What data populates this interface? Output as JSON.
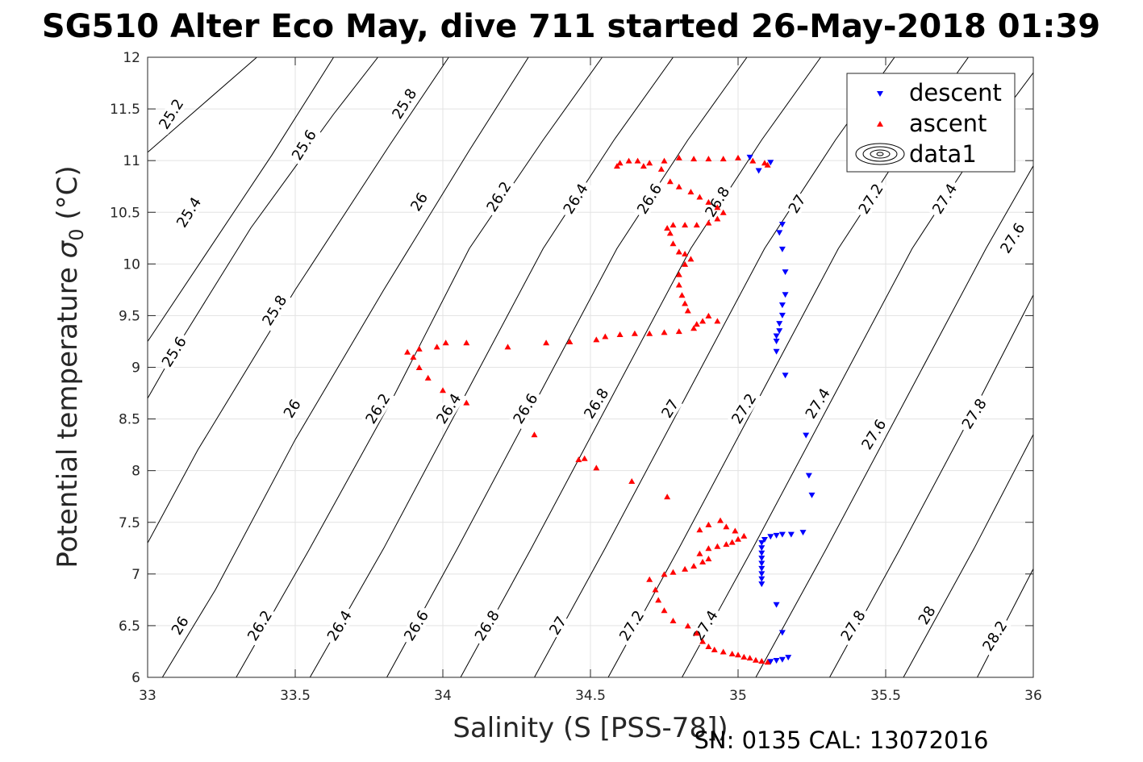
{
  "chart_data": {
    "type": "scatter",
    "title": "SG510 Alter Eco May, dive 711 started 26-May-2018 01:39",
    "xlabel": "Salinity (S [PSS-78])",
    "ylabel_main": "Potential temperature ",
    "ylabel_sigma": "σ",
    "ylabel_sub": "0",
    "ylabel_unit": " (°C)",
    "footer": "SN: 0135  CAL: 13072016",
    "xlim": [
      33,
      36
    ],
    "ylim": [
      6,
      12
    ],
    "xticks": [
      "33",
      "33.5",
      "34",
      "34.5",
      "35",
      "35.5",
      "36"
    ],
    "yticks": [
      "6",
      "6.5",
      "7",
      "7.5",
      "8",
      "8.5",
      "9",
      "9.5",
      "10",
      "10.5",
      "11",
      "11.5",
      "12"
    ],
    "grid": true,
    "legend": {
      "position": "top-right",
      "entries": [
        {
          "label": "descent",
          "color": "#0000ff",
          "marker": "triangle-down"
        },
        {
          "label": "ascent",
          "color": "#ff0000",
          "marker": "triangle-up"
        },
        {
          "label": "data1",
          "color": "#000000",
          "marker": "contour"
        }
      ]
    },
    "contour_labels": [
      {
        "text": "25.2",
        "s": 33.08,
        "t": 11.45
      },
      {
        "text": "25.8",
        "s": 33.87,
        "t": 11.55
      },
      {
        "text": "25.6",
        "s": 33.53,
        "t": 11.15
      },
      {
        "text": "25.4",
        "s": 33.14,
        "t": 10.5
      },
      {
        "text": "26",
        "s": 33.92,
        "t": 10.6
      },
      {
        "text": "26.2",
        "s": 34.19,
        "t": 10.65
      },
      {
        "text": "26.4",
        "s": 34.45,
        "t": 10.63
      },
      {
        "text": "26.6",
        "s": 34.7,
        "t": 10.63
      },
      {
        "text": "26.8",
        "s": 34.93,
        "t": 10.6
      },
      {
        "text": "27",
        "s": 35.2,
        "t": 10.58
      },
      {
        "text": "27.2",
        "s": 35.45,
        "t": 10.63
      },
      {
        "text": "27.4",
        "s": 35.7,
        "t": 10.63
      },
      {
        "text": "27.6",
        "s": 35.93,
        "t": 10.25
      },
      {
        "text": "25.8",
        "s": 33.43,
        "t": 9.55
      },
      {
        "text": "25.6",
        "s": 33.09,
        "t": 9.15
      },
      {
        "text": "26",
        "s": 33.49,
        "t": 8.6
      },
      {
        "text": "26.2",
        "s": 33.78,
        "t": 8.6
      },
      {
        "text": "26.4",
        "s": 34.02,
        "t": 8.6
      },
      {
        "text": "26.6",
        "s": 34.28,
        "t": 8.6
      },
      {
        "text": "26.8",
        "s": 34.52,
        "t": 8.65
      },
      {
        "text": "27",
        "s": 34.77,
        "t": 8.6
      },
      {
        "text": "27.2",
        "s": 35.02,
        "t": 8.6
      },
      {
        "text": "27.4",
        "s": 35.27,
        "t": 8.65
      },
      {
        "text": "27.6",
        "s": 35.46,
        "t": 8.35
      },
      {
        "text": "27.8",
        "s": 35.8,
        "t": 8.55
      },
      {
        "text": "26",
        "s": 33.11,
        "t": 6.5
      },
      {
        "text": "26.2",
        "s": 33.38,
        "t": 6.5
      },
      {
        "text": "26.4",
        "s": 33.65,
        "t": 6.5
      },
      {
        "text": "26.6",
        "s": 33.91,
        "t": 6.5
      },
      {
        "text": "26.8",
        "s": 34.15,
        "t": 6.5
      },
      {
        "text": "27",
        "s": 34.39,
        "t": 6.5
      },
      {
        "text": "27.2",
        "s": 34.64,
        "t": 6.5
      },
      {
        "text": "27.4",
        "s": 34.89,
        "t": 6.5
      },
      {
        "text": "27.8",
        "s": 35.39,
        "t": 6.5
      },
      {
        "text": "28",
        "s": 35.64,
        "t": 6.6
      },
      {
        "text": "28.2",
        "s": 35.87,
        "t": 6.4
      }
    ],
    "contour_lines": [
      {
        "p": [
          [
            33.0,
            11.08
          ],
          [
            33.37,
            12.0
          ]
        ]
      },
      {
        "p": [
          [
            33.0,
            9.25
          ],
          [
            33.42,
            11.05
          ],
          [
            33.63,
            12.0
          ]
        ]
      },
      {
        "p": [
          [
            33.0,
            8.7
          ],
          [
            33.1,
            9.2
          ],
          [
            33.35,
            10.35
          ],
          [
            33.63,
            11.45
          ],
          [
            33.78,
            12.0
          ]
        ]
      },
      {
        "p": [
          [
            33.0,
            7.3
          ],
          [
            33.17,
            8.2
          ],
          [
            33.5,
            9.75
          ],
          [
            33.82,
            11.15
          ],
          [
            34.02,
            12.0
          ]
        ]
      },
      {
        "p": [
          [
            33.05,
            6.0
          ],
          [
            33.23,
            6.85
          ],
          [
            33.5,
            8.3
          ],
          [
            33.8,
            9.75
          ],
          [
            34.09,
            11.1
          ],
          [
            34.29,
            12.0
          ]
        ]
      },
      {
        "p": [
          [
            33.3,
            6.0
          ],
          [
            33.55,
            7.25
          ],
          [
            33.83,
            8.7
          ],
          [
            34.09,
            10.15
          ],
          [
            34.34,
            11.2
          ],
          [
            34.54,
            12.0
          ]
        ]
      },
      {
        "p": [
          [
            33.55,
            6.0
          ],
          [
            33.8,
            7.25
          ],
          [
            34.07,
            8.7
          ],
          [
            34.34,
            10.15
          ],
          [
            34.58,
            11.2
          ],
          [
            34.78,
            12.0
          ]
        ]
      },
      {
        "p": [
          [
            33.81,
            6.0
          ],
          [
            34.05,
            7.25
          ],
          [
            34.32,
            8.7
          ],
          [
            34.59,
            10.15
          ],
          [
            34.83,
            11.2
          ],
          [
            35.03,
            12.0
          ]
        ]
      },
      {
        "p": [
          [
            34.06,
            6.0
          ],
          [
            34.3,
            7.25
          ],
          [
            34.57,
            8.7
          ],
          [
            34.84,
            10.15
          ],
          [
            35.08,
            11.2
          ],
          [
            35.28,
            12.0
          ]
        ]
      },
      {
        "p": [
          [
            34.31,
            6.0
          ],
          [
            34.55,
            7.25
          ],
          [
            34.82,
            8.7
          ],
          [
            35.09,
            10.15
          ],
          [
            35.33,
            11.2
          ],
          [
            35.53,
            12.0
          ]
        ]
      },
      {
        "p": [
          [
            34.56,
            6.0
          ],
          [
            34.8,
            7.25
          ],
          [
            35.07,
            8.7
          ],
          [
            35.34,
            10.15
          ],
          [
            35.58,
            11.2
          ],
          [
            35.78,
            12.0
          ]
        ]
      },
      {
        "p": [
          [
            34.81,
            6.0
          ],
          [
            35.05,
            7.25
          ],
          [
            35.32,
            8.7
          ],
          [
            35.59,
            10.15
          ],
          [
            35.83,
            11.2
          ],
          [
            36.0,
            11.85
          ]
        ]
      },
      {
        "p": [
          [
            35.06,
            6.0
          ],
          [
            35.3,
            7.25
          ],
          [
            35.57,
            8.7
          ],
          [
            35.84,
            10.15
          ],
          [
            36.0,
            10.95
          ]
        ]
      },
      {
        "p": [
          [
            35.31,
            6.0
          ],
          [
            35.55,
            7.25
          ],
          [
            35.82,
            8.7
          ],
          [
            36.0,
            9.7
          ]
        ]
      },
      {
        "p": [
          [
            35.56,
            6.0
          ],
          [
            35.8,
            7.25
          ],
          [
            36.0,
            8.35
          ]
        ]
      },
      {
        "p": [
          [
            35.81,
            6.0
          ],
          [
            36.0,
            7.05
          ]
        ]
      }
    ],
    "descent": [
      [
        35.04,
        11.03
      ],
      [
        35.07,
        10.9
      ],
      [
        35.11,
        10.98
      ],
      [
        35.15,
        10.38
      ],
      [
        35.14,
        10.3
      ],
      [
        35.15,
        10.14
      ],
      [
        35.16,
        9.92
      ],
      [
        35.16,
        9.7
      ],
      [
        35.15,
        9.6
      ],
      [
        35.15,
        9.5
      ],
      [
        35.14,
        9.42
      ],
      [
        35.14,
        9.35
      ],
      [
        35.13,
        9.3
      ],
      [
        35.13,
        9.25
      ],
      [
        35.13,
        9.15
      ],
      [
        35.16,
        8.92
      ],
      [
        35.23,
        8.34
      ],
      [
        35.24,
        7.95
      ],
      [
        35.25,
        7.76
      ],
      [
        35.22,
        7.4
      ],
      [
        35.18,
        7.38
      ],
      [
        35.15,
        7.38
      ],
      [
        35.13,
        7.37
      ],
      [
        35.11,
        7.36
      ],
      [
        35.09,
        7.33
      ],
      [
        35.08,
        7.3
      ],
      [
        35.08,
        7.25
      ],
      [
        35.08,
        7.2
      ],
      [
        35.08,
        7.15
      ],
      [
        35.08,
        7.1
      ],
      [
        35.08,
        7.05
      ],
      [
        35.08,
        7.0
      ],
      [
        35.08,
        6.95
      ],
      [
        35.08,
        6.9
      ],
      [
        35.13,
        6.7
      ],
      [
        35.15,
        6.43
      ],
      [
        35.17,
        6.19
      ],
      [
        35.15,
        6.17
      ],
      [
        35.13,
        6.16
      ],
      [
        35.11,
        6.15
      ]
    ],
    "ascent": [
      [
        35.1,
        6.15
      ],
      [
        35.08,
        6.16
      ],
      [
        35.06,
        6.17
      ],
      [
        35.04,
        6.19
      ],
      [
        35.02,
        6.2
      ],
      [
        35.0,
        6.22
      ],
      [
        34.98,
        6.23
      ],
      [
        34.95,
        6.25
      ],
      [
        34.92,
        6.27
      ],
      [
        34.9,
        6.3
      ],
      [
        34.88,
        6.35
      ],
      [
        34.86,
        6.43
      ],
      [
        34.83,
        6.5
      ],
      [
        34.78,
        6.55
      ],
      [
        34.75,
        6.65
      ],
      [
        34.73,
        6.75
      ],
      [
        34.72,
        6.85
      ],
      [
        34.7,
        6.95
      ],
      [
        34.75,
        7.0
      ],
      [
        34.78,
        7.02
      ],
      [
        34.82,
        7.05
      ],
      [
        34.85,
        7.08
      ],
      [
        34.88,
        7.12
      ],
      [
        34.9,
        7.15
      ],
      [
        34.87,
        7.2
      ],
      [
        34.9,
        7.25
      ],
      [
        34.93,
        7.27
      ],
      [
        34.96,
        7.29
      ],
      [
        34.98,
        7.31
      ],
      [
        35.0,
        7.34
      ],
      [
        35.02,
        7.37
      ],
      [
        34.99,
        7.42
      ],
      [
        34.96,
        7.46
      ],
      [
        34.94,
        7.52
      ],
      [
        34.9,
        7.48
      ],
      [
        34.87,
        7.43
      ],
      [
        34.76,
        7.75
      ],
      [
        34.64,
        7.9
      ],
      [
        34.52,
        8.03
      ],
      [
        34.48,
        8.12
      ],
      [
        34.46,
        8.11
      ],
      [
        34.31,
        8.35
      ],
      [
        34.08,
        8.66
      ],
      [
        34.0,
        8.78
      ],
      [
        33.95,
        8.9
      ],
      [
        33.92,
        9.0
      ],
      [
        33.9,
        9.1
      ],
      [
        33.88,
        9.15
      ],
      [
        33.92,
        9.18
      ],
      [
        33.98,
        9.2
      ],
      [
        34.01,
        9.24
      ],
      [
        34.08,
        9.24
      ],
      [
        34.22,
        9.2
      ],
      [
        34.35,
        9.24
      ],
      [
        34.43,
        9.25
      ],
      [
        34.52,
        9.27
      ],
      [
        34.55,
        9.3
      ],
      [
        34.6,
        9.32
      ],
      [
        34.65,
        9.33
      ],
      [
        34.7,
        9.33
      ],
      [
        34.75,
        9.34
      ],
      [
        34.8,
        9.35
      ],
      [
        34.85,
        9.38
      ],
      [
        34.88,
        9.45
      ],
      [
        34.9,
        9.5
      ],
      [
        34.93,
        9.45
      ],
      [
        34.86,
        9.42
      ],
      [
        34.83,
        9.55
      ],
      [
        34.82,
        9.62
      ],
      [
        34.81,
        9.7
      ],
      [
        34.8,
        9.8
      ],
      [
        34.8,
        9.9
      ],
      [
        34.82,
        10.0
      ],
      [
        34.84,
        10.05
      ],
      [
        34.82,
        10.1
      ],
      [
        34.8,
        10.12
      ],
      [
        34.78,
        10.2
      ],
      [
        34.77,
        10.3
      ],
      [
        34.76,
        10.35
      ],
      [
        34.78,
        10.38
      ],
      [
        34.82,
        10.38
      ],
      [
        34.86,
        10.38
      ],
      [
        34.9,
        10.4
      ],
      [
        34.93,
        10.44
      ],
      [
        34.95,
        10.5
      ],
      [
        34.93,
        10.55
      ],
      [
        34.9,
        10.6
      ],
      [
        34.87,
        10.65
      ],
      [
        34.84,
        10.7
      ],
      [
        34.8,
        10.75
      ],
      [
        34.77,
        10.8
      ],
      [
        34.74,
        10.92
      ],
      [
        34.7,
        10.98
      ],
      [
        34.68,
        10.95
      ],
      [
        34.66,
        11.0
      ],
      [
        34.63,
        11.0
      ],
      [
        34.6,
        10.98
      ],
      [
        34.59,
        10.95
      ],
      [
        34.75,
        11.0
      ],
      [
        34.8,
        11.03
      ],
      [
        34.85,
        11.02
      ],
      [
        34.9,
        11.02
      ],
      [
        34.95,
        11.02
      ],
      [
        35.0,
        11.03
      ],
      [
        35.05,
        11.0
      ],
      [
        35.09,
        10.98
      ],
      [
        35.1,
        10.96
      ]
    ]
  }
}
